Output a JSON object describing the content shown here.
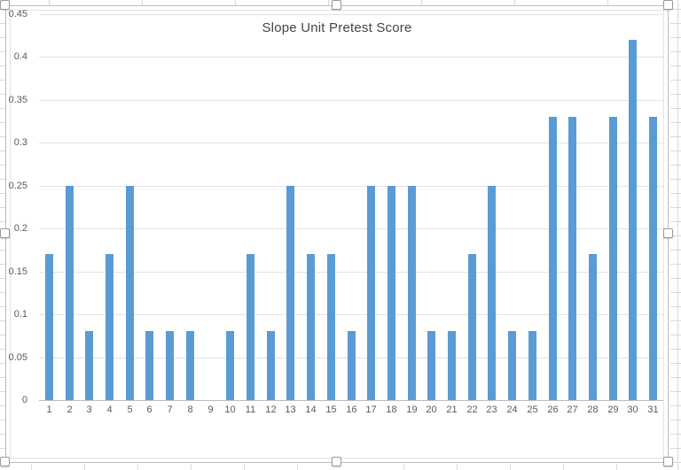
{
  "chart_data": {
    "type": "bar",
    "title": "Slope Unit Pretest Score",
    "categories": [
      "1",
      "2",
      "3",
      "4",
      "5",
      "6",
      "7",
      "8",
      "9",
      "10",
      "11",
      "12",
      "13",
      "14",
      "15",
      "16",
      "17",
      "18",
      "19",
      "20",
      "21",
      "22",
      "23",
      "24",
      "25",
      "26",
      "27",
      "28",
      "29",
      "30",
      "31"
    ],
    "values": [
      0.17,
      0.25,
      0.08,
      0.17,
      0.25,
      0.08,
      0.08,
      0.08,
      0,
      0.08,
      0.17,
      0.08,
      0.25,
      0.17,
      0.17,
      0.08,
      0.25,
      0.25,
      0.25,
      0.08,
      0.08,
      0.17,
      0.25,
      0.08,
      0.08,
      0.33,
      0.33,
      0.17,
      0.33,
      0.42,
      0.33
    ],
    "xlabel": "",
    "ylabel": "",
    "ylim": [
      0,
      0.45
    ],
    "ytick_labels": [
      "0",
      "0.05",
      "0.1",
      "0.15",
      "0.2",
      "0.25",
      "0.3",
      "0.35",
      "0.4",
      "0.45"
    ],
    "ytick_values": [
      0,
      0.05,
      0.1,
      0.15,
      0.2,
      0.25,
      0.3,
      0.35,
      0.4,
      0.45
    ],
    "grid": true,
    "legend": "none",
    "bar_color": "#5b9bd5"
  },
  "colors": {
    "bar": "#5b9bd5",
    "gridline": "#e2e2e2",
    "axis": "#bdbdbd",
    "tick_label": "#595959",
    "title": "#444444",
    "sheet_gridline": "#d9d9d9"
  },
  "selection": {
    "state": "chart-selected",
    "handles": [
      "top-left",
      "top-middle",
      "top-right",
      "middle-left",
      "middle-right",
      "bottom-left",
      "bottom-middle",
      "bottom-right"
    ]
  }
}
